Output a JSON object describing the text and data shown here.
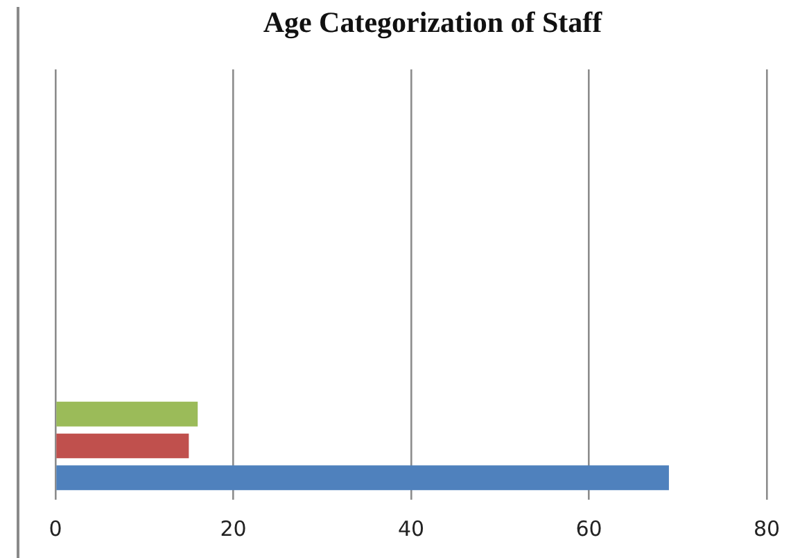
{
  "chart_data": {
    "type": "bar",
    "title": "Age Categorization of Staff",
    "orientation": "horizontal",
    "categories": [
      null,
      null,
      null,
      null
    ],
    "series": [
      {
        "color": "#9bbb59",
        "values": [
          null,
          null,
          null,
          16
        ]
      },
      {
        "color": "#c0504d",
        "values": [
          null,
          null,
          null,
          15
        ]
      },
      {
        "color": "#4f81bd",
        "values": [
          null,
          null,
          null,
          69
        ]
      }
    ],
    "xlim": [
      0,
      80
    ],
    "xticks": [
      0,
      20,
      40,
      60,
      80
    ],
    "grid": "x",
    "tick_labels": "x"
  }
}
